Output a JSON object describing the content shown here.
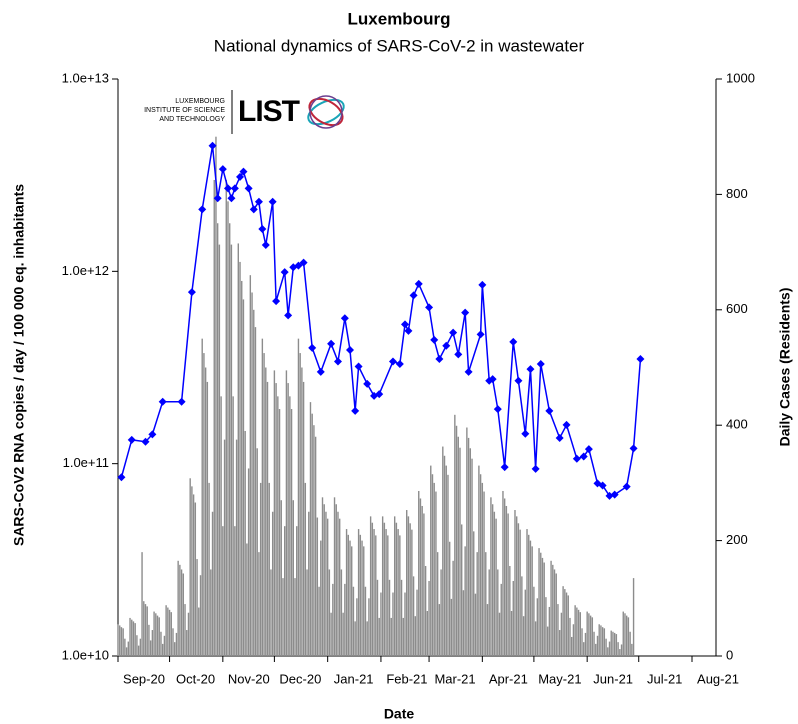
{
  "chart_data": {
    "type": "combo",
    "title": "Luxembourg",
    "subtitle": "National dynamics of SARS-CoV-2 in wastewater",
    "x_label": "Date",
    "y_label": "SARS-CoV2 RNA copies / day  / 100 000 eq. inhabitants",
    "y2_label": "Daily Cases (Residents)",
    "logo": {
      "lines": [
        "LUXEMBOURG",
        "INSTITUTE OF SCIENCE",
        "AND TECHNOLOGY"
      ],
      "wordmark": "LIST"
    },
    "xlim": [
      0,
      334
    ],
    "xticks": [
      {
        "value": 0,
        "label": "Sep-20"
      },
      {
        "value": 30,
        "label": "Oct-20"
      },
      {
        "value": 61,
        "label": "Nov-20"
      },
      {
        "value": 91,
        "label": "Dec-20"
      },
      {
        "value": 122,
        "label": "Jan-21"
      },
      {
        "value": 153,
        "label": "Feb-21"
      },
      {
        "value": 181,
        "label": "Mar-21"
      },
      {
        "value": 212,
        "label": "Apr-21"
      },
      {
        "value": 242,
        "label": "May-21"
      },
      {
        "value": 273,
        "label": "Jun-21"
      },
      {
        "value": 303,
        "label": "Jul-21"
      },
      {
        "value": 334,
        "label": "Aug-21"
      }
    ],
    "ylim": [
      10000000000,
      10000000000000
    ],
    "y_scale": "log",
    "yticks": [
      {
        "value": 10000000000,
        "label": "1.0e+10"
      },
      {
        "value": 100000000000,
        "label": "1.0e+11"
      },
      {
        "value": 1000000000000,
        "label": "1.0e+12"
      },
      {
        "value": 10000000000000,
        "label": "1.0e+13"
      }
    ],
    "y2lim": [
      0,
      1000
    ],
    "y2ticks": [
      0,
      200,
      400,
      600,
      800,
      1000
    ],
    "grid": false,
    "series": [
      {
        "type": "bar",
        "axis": "y2",
        "color": "#8c8c8c",
        "x": [
          0,
          1,
          2,
          3,
          4,
          5,
          6,
          7,
          8,
          9,
          10,
          11,
          12,
          13,
          14,
          15,
          16,
          17,
          18,
          19,
          20,
          21,
          22,
          23,
          24,
          25,
          26,
          27,
          28,
          29,
          30,
          31,
          32,
          33,
          34,
          35,
          36,
          37,
          38,
          39,
          40,
          41,
          42,
          43,
          44,
          45,
          46,
          47,
          48,
          49,
          50,
          51,
          52,
          53,
          54,
          55,
          56,
          57,
          58,
          59,
          60,
          61,
          62,
          63,
          64,
          65,
          66,
          67,
          68,
          69,
          70,
          71,
          72,
          73,
          74,
          75,
          76,
          77,
          78,
          79,
          80,
          81,
          82,
          83,
          84,
          85,
          86,
          87,
          88,
          89,
          90,
          91,
          92,
          93,
          94,
          95,
          96,
          97,
          98,
          99,
          100,
          101,
          102,
          103,
          104,
          105,
          106,
          107,
          108,
          109,
          110,
          111,
          112,
          113,
          114,
          115,
          116,
          117,
          118,
          119,
          120,
          121,
          122,
          123,
          124,
          125,
          126,
          127,
          128,
          129,
          130,
          131,
          132,
          133,
          134,
          135,
          136,
          137,
          138,
          139,
          140,
          141,
          142,
          143,
          144,
          145,
          146,
          147,
          148,
          149,
          150,
          151,
          152,
          153,
          154,
          155,
          156,
          157,
          158,
          159,
          160,
          161,
          162,
          163,
          164,
          165,
          166,
          167,
          168,
          169,
          170,
          171,
          172,
          173,
          174,
          175,
          176,
          177,
          178,
          179,
          180,
          181,
          182,
          183,
          184,
          185,
          186,
          187,
          188,
          189,
          190,
          191,
          192,
          193,
          194,
          195,
          196,
          197,
          198,
          199,
          200,
          201,
          202,
          203,
          204,
          205,
          206,
          207,
          208,
          209,
          210,
          211,
          212,
          213,
          214,
          215,
          216,
          217,
          218,
          219,
          220,
          221,
          222,
          223,
          224,
          225,
          226,
          227,
          228,
          229,
          230,
          231,
          232,
          233,
          234,
          235,
          236,
          237,
          238,
          239,
          240,
          241,
          242,
          243,
          244,
          245,
          246,
          247,
          248,
          249,
          250,
          251,
          252,
          253,
          254,
          255,
          256,
          257,
          258,
          259,
          260,
          261,
          262,
          263,
          264,
          265,
          266,
          267,
          268,
          269,
          270,
          271,
          272,
          273,
          274,
          275,
          276,
          277,
          278,
          279,
          280,
          281,
          282,
          283,
          284,
          285,
          286,
          287,
          288,
          289,
          290,
          291,
          292,
          293,
          294,
          295,
          296,
          297,
          298,
          299,
          300
        ],
        "values": [
          55,
          53,
          50,
          48,
          30,
          15,
          25,
          66,
          63,
          60,
          57,
          36,
          18,
          30,
          180,
          95,
          90,
          86,
          54,
          27,
          45,
          77,
          74,
          70,
          67,
          42,
          21,
          35,
          88,
          84,
          80,
          76,
          48,
          24,
          40,
          165,
          158,
          150,
          143,
          90,
          45,
          75,
          308,
          294,
          280,
          266,
          168,
          84,
          140,
          550,
          525,
          500,
          475,
          300,
          150,
          250,
          825,
          900,
          750,
          713,
          450,
          225,
          375,
          825,
          788,
          750,
          713,
          450,
          225,
          375,
          715,
          683,
          650,
          618,
          390,
          195,
          325,
          660,
          630,
          600,
          570,
          360,
          180,
          300,
          550,
          525,
          500,
          475,
          300,
          150,
          250,
          495,
          473,
          450,
          428,
          270,
          135,
          225,
          495,
          473,
          450,
          428,
          270,
          135,
          225,
          550,
          525,
          500,
          475,
          300,
          150,
          250,
          440,
          420,
          400,
          380,
          240,
          120,
          200,
          275,
          263,
          250,
          238,
          150,
          75,
          125,
          275,
          263,
          250,
          238,
          150,
          75,
          125,
          220,
          210,
          200,
          190,
          120,
          60,
          100,
          220,
          210,
          200,
          190,
          120,
          60,
          100,
          242,
          231,
          220,
          209,
          132,
          66,
          110,
          242,
          231,
          220,
          209,
          132,
          66,
          110,
          242,
          231,
          220,
          209,
          132,
          66,
          110,
          253,
          242,
          230,
          219,
          138,
          69,
          115,
          286,
          273,
          260,
          247,
          156,
          78,
          130,
          330,
          315,
          300,
          285,
          180,
          90,
          150,
          363,
          347,
          330,
          314,
          198,
          99,
          165,
          418,
          399,
          380,
          361,
          228,
          114,
          190,
          396,
          378,
          360,
          342,
          216,
          108,
          180,
          330,
          315,
          300,
          285,
          180,
          90,
          150,
          275,
          263,
          250,
          238,
          150,
          75,
          125,
          286,
          273,
          260,
          247,
          156,
          78,
          130,
          253,
          242,
          230,
          219,
          138,
          69,
          115,
          220,
          210,
          200,
          190,
          120,
          60,
          100,
          187,
          179,
          170,
          162,
          102,
          51,
          85,
          165,
          158,
          150,
          143,
          90,
          45,
          75,
          121,
          116,
          110,
          105,
          66,
          33,
          55,
          88,
          84,
          80,
          76,
          48,
          24,
          40,
          77,
          74,
          70,
          67,
          42,
          21,
          35,
          55,
          53,
          50,
          48,
          30,
          15,
          25,
          44,
          42,
          40,
          38,
          24,
          12,
          20,
          77,
          74,
          70,
          67,
          42,
          21,
          135
        ]
      },
      {
        "type": "line",
        "color": "#0000ff",
        "x": [
          2,
          8,
          16,
          20,
          26,
          37,
          43,
          49,
          55,
          58,
          61,
          64,
          66,
          68,
          71,
          73,
          76,
          79,
          82,
          84,
          86,
          90,
          92,
          97,
          99,
          102,
          105,
          108,
          113,
          118,
          124,
          128,
          132,
          135,
          138,
          140,
          145,
          149,
          152,
          160,
          164,
          167,
          169,
          172,
          175,
          181,
          184,
          187,
          191,
          195,
          198,
          202,
          204,
          211,
          212,
          216,
          218,
          221,
          225,
          230,
          233,
          237,
          240,
          243,
          246,
          251,
          257,
          261,
          267,
          271,
          274,
          279,
          282,
          286,
          289,
          296,
          300,
          304
        ],
        "values": [
          85000000000,
          133000000000,
          130000000000,
          142000000000,
          210000000000,
          210000000000,
          780000000000,
          2100000000000,
          4500000000000,
          2400000000000,
          3400000000000,
          2700000000000,
          2400000000000,
          2700000000000,
          3100000000000,
          3300000000000,
          2700000000000,
          2100000000000,
          2300000000000,
          1660000000000,
          1370000000000,
          2300000000000,
          700000000000,
          990000000000,
          590000000000,
          1050000000000,
          1070000000000,
          1110000000000,
          400000000000,
          300000000000,
          420000000000,
          340000000000,
          570000000000,
          390000000000,
          188000000000,
          320000000000,
          260000000000,
          225000000000,
          230000000000,
          340000000000,
          330000000000,
          530000000000,
          490000000000,
          750000000000,
          860000000000,
          650000000000,
          440000000000,
          350000000000,
          410000000000,
          480000000000,
          370000000000,
          610000000000,
          300000000000,
          470000000000,
          850000000000,
          270000000000,
          275000000000,
          192000000000,
          96000000000,
          430000000000,
          270000000000,
          143000000000,
          310000000000,
          94000000000,
          330000000000,
          188000000000,
          136000000000,
          159000000000,
          106000000000,
          109000000000,
          119000000000,
          79000000000,
          77000000000,
          68000000000,
          69000000000,
          76000000000,
          120000000000,
          350000000000
        ]
      }
    ]
  }
}
